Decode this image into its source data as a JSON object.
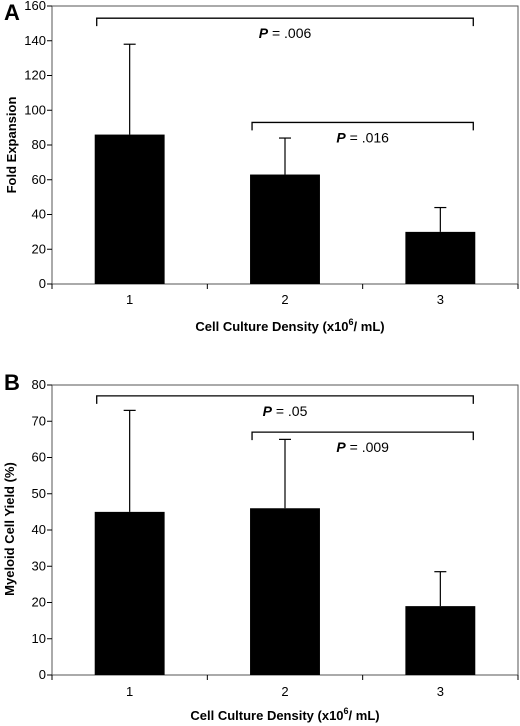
{
  "chart_data": [
    {
      "panel": "A",
      "type": "bar",
      "categories": [
        "1",
        "2",
        "3"
      ],
      "values": [
        86,
        63,
        30
      ],
      "error_upper": [
        138,
        84,
        44
      ],
      "xlabel": "Cell Culture Density (x10",
      "xlabel_sup": "6",
      "xlabel_tail": "/ mL)",
      "ylabel": "Fold Expansion",
      "ylim": [
        0,
        160
      ],
      "yticks": [
        "0",
        "20",
        "40",
        "60",
        "80",
        "100",
        "120",
        "140",
        "160"
      ],
      "annotations": [
        {
          "p": "P",
          "text": " = .006",
          "from": 0,
          "to": 2,
          "y": 153
        },
        {
          "p": "P",
          "text": " = .016",
          "from": 1,
          "to": 2,
          "y": 93
        }
      ],
      "bar_color": "#000000"
    },
    {
      "panel": "B",
      "type": "bar",
      "categories": [
        "1",
        "2",
        "3"
      ],
      "values": [
        45,
        46,
        19
      ],
      "error_upper": [
        73,
        65,
        28.5
      ],
      "xlabel": "Cell Culture Density (x10",
      "xlabel_sup": "6",
      "xlabel_tail": "/ mL)",
      "ylabel": "Myeloid Cell Yield (%)",
      "ylim": [
        0,
        80
      ],
      "yticks": [
        "0",
        "10",
        "20",
        "30",
        "40",
        "50",
        "60",
        "70",
        "80"
      ],
      "annotations": [
        {
          "p": "P",
          "text": " = .05",
          "from": 0,
          "to": 2,
          "y": 77
        },
        {
          "p": "P",
          "text": " = .009",
          "from": 1,
          "to": 2,
          "y": 67
        }
      ],
      "bar_color": "#000000"
    }
  ]
}
